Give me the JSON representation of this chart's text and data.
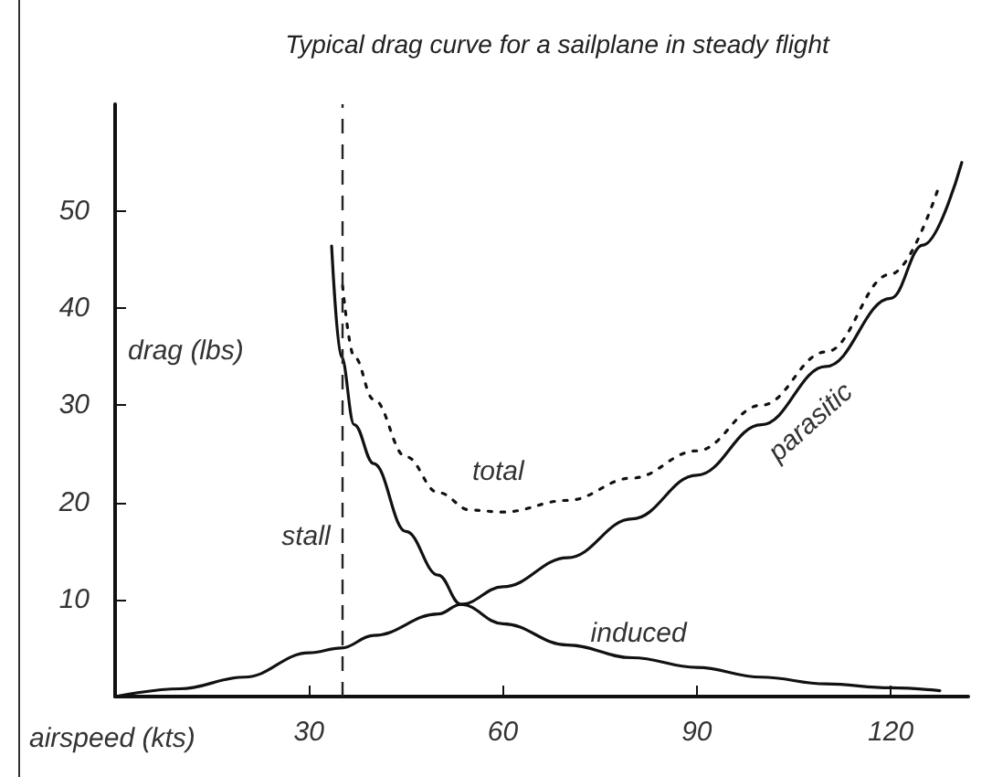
{
  "chart_data": {
    "type": "line",
    "title": "Typical drag curve for a sailplane in steady flight",
    "xlabel": "airspeed (kts)",
    "ylabel": "drag (lbs)",
    "xlim": [
      0,
      132
    ],
    "xticks": [
      30,
      60,
      90,
      120
    ],
    "ylim": [
      0,
      61
    ],
    "yticks": [
      10,
      20,
      30,
      40,
      50
    ],
    "grid": false,
    "legend": false,
    "marker": "none",
    "ref_lines": [
      {
        "axis": "x",
        "value": 35,
        "label": "stall",
        "color": "#222222",
        "line_style": "dashed"
      }
    ],
    "series": [
      {
        "name": "parasitic",
        "color": "#111111",
        "line_style": "solid",
        "x": [
          0,
          10,
          20,
          30,
          35,
          40,
          50,
          53.5,
          60,
          70,
          80,
          90,
          100,
          110,
          120,
          125,
          131
        ],
        "values": [
          0,
          0.8,
          2,
          4.5,
          5,
          6.3,
          8.5,
          9.5,
          11.3,
          14.3,
          18.3,
          22.8,
          28,
          34,
          41,
          46.5,
          55
        ]
      },
      {
        "name": "induced",
        "color": "#111111",
        "line_style": "solid",
        "x": [
          33.5,
          35,
          37,
          40,
          45,
          50,
          53.5,
          60,
          70,
          80,
          90,
          100,
          110,
          120,
          127.6
        ],
        "values": [
          46.4,
          35,
          28,
          24,
          17,
          12.5,
          9.5,
          7.5,
          5.3,
          4,
          3,
          2,
          1.3,
          0.9,
          0.6
        ]
      },
      {
        "name": "total",
        "color": "#111111",
        "line_style": "dotted",
        "x": [
          35.2,
          37,
          40,
          45,
          50,
          55,
          60,
          70,
          80,
          90,
          100,
          110,
          120,
          127.5
        ],
        "values": [
          42.3,
          35,
          30.6,
          24.7,
          21,
          19.2,
          19,
          20.2,
          22.5,
          25.3,
          30,
          35.5,
          43.5,
          52.6
        ]
      }
    ]
  }
}
